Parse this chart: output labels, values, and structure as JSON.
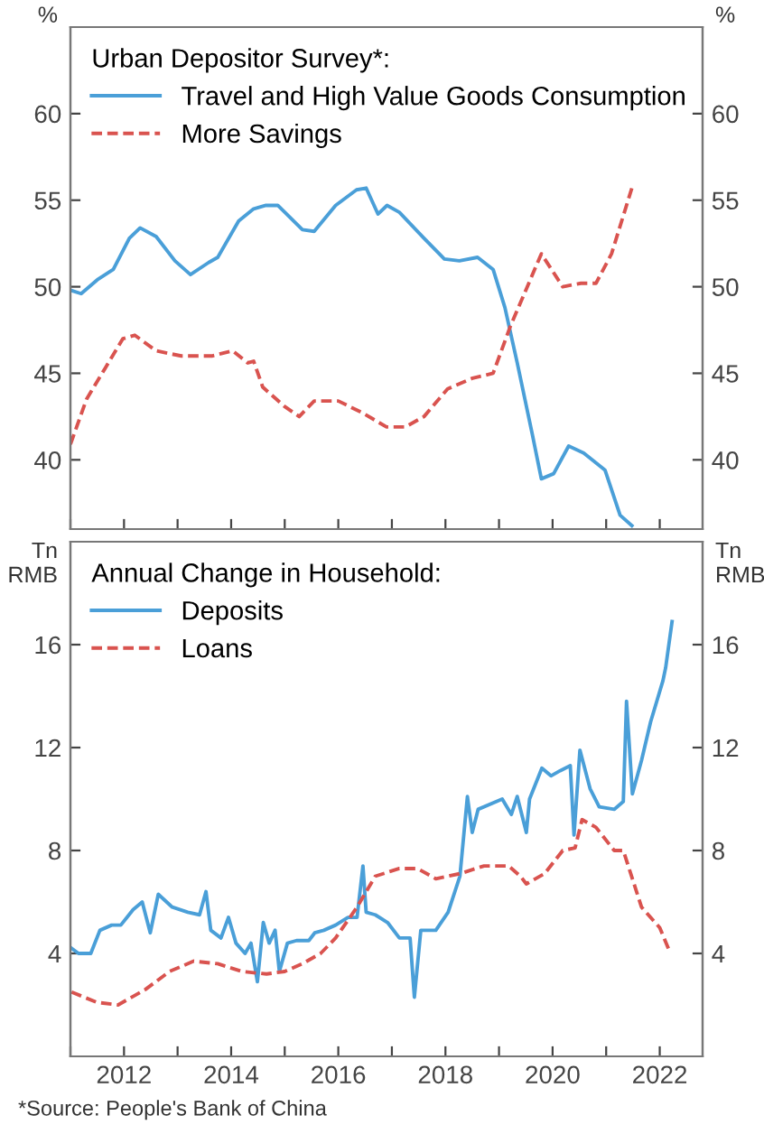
{
  "chart_data": [
    {
      "type": "line",
      "legend_title": "Urban Depositor Survey*:",
      "ylabel": "%",
      "y2label": "%",
      "legend": "top left",
      "grid": false,
      "tick_labels": "y",
      "xlim": [
        2011,
        2022.8
      ],
      "xticks": [
        {
          "value": 2011,
          "label": null
        },
        {
          "value": 2012,
          "label": null
        },
        {
          "value": 2013,
          "label": null
        },
        {
          "value": 2014,
          "label": null
        },
        {
          "value": 2015,
          "label": null
        },
        {
          "value": 2016,
          "label": null
        },
        {
          "value": 2017,
          "label": null
        },
        {
          "value": 2018,
          "label": null
        },
        {
          "value": 2019,
          "label": null
        },
        {
          "value": 2020,
          "label": null
        },
        {
          "value": 2021,
          "label": null
        },
        {
          "value": 2022,
          "label": null
        }
      ],
      "ylim": [
        36,
        65
      ],
      "yticks": [
        40,
        45,
        50,
        55,
        60
      ],
      "y2lim": [
        36,
        65
      ],
      "y2ticks": [
        40,
        45,
        50,
        55,
        60
      ],
      "series": [
        {
          "name": "Travel and High Value Goods Consumption",
          "color": "#4a9fd8",
          "line_style": "solid",
          "x": [
            2011.0,
            2011.2,
            2011.5,
            2011.8,
            2012.1,
            2012.3,
            2012.6,
            2012.95,
            2013.24,
            2013.58,
            2013.75,
            2014.14,
            2014.42,
            2014.65,
            2014.87,
            2015.33,
            2015.55,
            2015.95,
            2016.34,
            2016.52,
            2016.74,
            2016.91,
            2017.14,
            2017.6,
            2017.98,
            2018.26,
            2018.6,
            2018.89,
            2019.11,
            2019.34,
            2019.62,
            2019.79,
            2020.02,
            2020.3,
            2020.58,
            2020.98,
            2021.26,
            2021.48
          ],
          "values": [
            49.8,
            49.6,
            50.4,
            51.0,
            52.8,
            53.4,
            52.9,
            51.5,
            50.7,
            51.4,
            51.7,
            53.8,
            54.5,
            54.7,
            54.7,
            53.3,
            53.2,
            54.7,
            55.6,
            55.7,
            54.2,
            54.7,
            54.3,
            52.8,
            51.6,
            51.5,
            51.7,
            51.0,
            48.8,
            45.6,
            41.5,
            38.9,
            39.2,
            40.8,
            40.4,
            39.4,
            36.8,
            36.2
          ]
        },
        {
          "name": "More Savings",
          "color": "#d9534f",
          "line_style": "dashed",
          "x": [
            2011.0,
            2011.3,
            2011.65,
            2011.98,
            2012.2,
            2012.6,
            2013.07,
            2013.64,
            2014.03,
            2014.31,
            2014.42,
            2014.59,
            2014.99,
            2015.27,
            2015.55,
            2016.0,
            2016.46,
            2016.9,
            2017.25,
            2017.6,
            2018.04,
            2018.49,
            2018.89,
            2019.21,
            2019.5,
            2019.79,
            2020.19,
            2020.53,
            2020.81,
            2021.1,
            2021.48
          ],
          "values": [
            40.9,
            43.5,
            45.3,
            47.0,
            47.2,
            46.3,
            46.0,
            46.0,
            46.3,
            45.6,
            45.7,
            44.2,
            43.1,
            42.5,
            43.4,
            43.4,
            42.7,
            41.9,
            41.9,
            42.5,
            44.1,
            44.7,
            45.0,
            47.7,
            49.8,
            51.9,
            50.0,
            50.2,
            50.2,
            51.9,
            55.7
          ]
        }
      ]
    },
    {
      "type": "line",
      "legend_title": "Annual Change in Household:",
      "ylabel": "Tn\nRMB",
      "y2label": "Tn\nRMB",
      "legend": "top left",
      "grid": false,
      "annotations": [
        "*Source: People's Bank of China"
      ],
      "xlim": [
        2011,
        2022.8
      ],
      "xticks": [
        {
          "value": 2011,
          "label": null
        },
        2012,
        {
          "value": 2013,
          "label": null
        },
        2014,
        {
          "value": 2015,
          "label": null
        },
        2016,
        {
          "value": 2017,
          "label": null
        },
        2018,
        {
          "value": 2019,
          "label": null
        },
        2020,
        {
          "value": 2021,
          "label": null
        },
        2022
      ],
      "ylim": [
        0,
        20
      ],
      "yticks": [
        4,
        8,
        12,
        16
      ],
      "y2lim": [
        0,
        20
      ],
      "y2ticks": [
        4,
        8,
        12,
        16
      ],
      "series": [
        {
          "name": "Deposits",
          "color": "#4a9fd8",
          "line_style": "solid",
          "x": [
            2011.02,
            2011.15,
            2011.38,
            2011.55,
            2011.77,
            2011.94,
            2012.17,
            2012.34,
            2012.49,
            2012.64,
            2012.9,
            2013.19,
            2013.41,
            2013.53,
            2013.62,
            2013.81,
            2013.95,
            2014.09,
            2014.26,
            2014.37,
            2014.49,
            2014.6,
            2014.71,
            2014.82,
            2014.9,
            2015.05,
            2015.22,
            2015.45,
            2015.56,
            2015.73,
            2015.95,
            2016.18,
            2016.35,
            2016.46,
            2016.52,
            2016.69,
            2016.92,
            2017.14,
            2017.34,
            2017.42,
            2017.54,
            2017.82,
            2018.05,
            2018.27,
            2018.41,
            2018.5,
            2018.61,
            2019.06,
            2019.23,
            2019.34,
            2019.51,
            2019.57,
            2019.8,
            2019.97,
            2020.14,
            2020.33,
            2020.4,
            2020.51,
            2020.7,
            2020.87,
            2021.15,
            2021.32,
            2021.38,
            2021.49,
            2021.66,
            2021.83,
            2022.06,
            2022.11,
            2022.23
          ],
          "values": [
            4.2,
            4.0,
            4.0,
            4.9,
            5.1,
            5.1,
            5.7,
            6.0,
            4.8,
            6.3,
            5.8,
            5.6,
            5.5,
            6.4,
            4.9,
            4.6,
            5.4,
            4.4,
            4.0,
            4.4,
            2.9,
            5.2,
            4.4,
            4.9,
            3.3,
            4.4,
            4.5,
            4.5,
            4.8,
            4.9,
            5.1,
            5.4,
            5.4,
            7.4,
            5.6,
            5.5,
            5.2,
            4.6,
            4.6,
            2.3,
            4.9,
            4.9,
            5.6,
            7.0,
            10.1,
            8.7,
            9.6,
            10.0,
            9.4,
            10.1,
            8.7,
            10.0,
            11.2,
            10.9,
            11.1,
            11.3,
            8.6,
            11.9,
            10.4,
            9.7,
            9.6,
            9.9,
            13.8,
            10.2,
            11.5,
            13.0,
            14.6,
            15.1,
            16.9
          ]
        },
        {
          "name": "Loans",
          "color": "#d9534f",
          "line_style": "dashed",
          "x": [
            2011.02,
            2011.49,
            2011.89,
            2012.4,
            2012.85,
            2013.3,
            2013.75,
            2014.2,
            2014.66,
            2015.0,
            2015.33,
            2015.67,
            2015.95,
            2016.35,
            2016.69,
            2017.14,
            2017.48,
            2017.82,
            2018.27,
            2018.72,
            2019.18,
            2019.4,
            2019.51,
            2019.85,
            2020.19,
            2020.42,
            2020.55,
            2020.81,
            2021.15,
            2021.32,
            2021.66,
            2022.0,
            2022.2
          ],
          "values": [
            2.5,
            2.1,
            2.0,
            2.6,
            3.3,
            3.7,
            3.6,
            3.3,
            3.2,
            3.3,
            3.6,
            4.0,
            4.6,
            5.8,
            7.0,
            7.3,
            7.3,
            6.9,
            7.1,
            7.4,
            7.4,
            7.0,
            6.7,
            7.1,
            8.0,
            8.1,
            9.2,
            8.9,
            8.0,
            8.0,
            5.8,
            5.0,
            4.0
          ]
        }
      ]
    }
  ]
}
